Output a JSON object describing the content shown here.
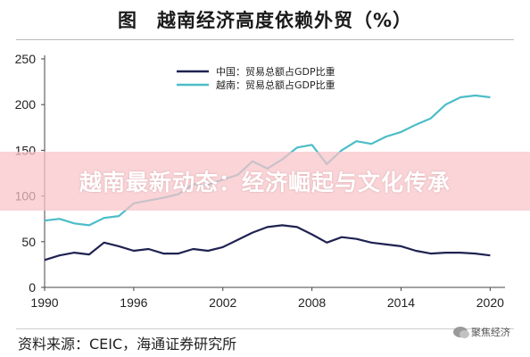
{
  "figure": {
    "label": "图",
    "title": "越南经济高度依赖外贸（%）"
  },
  "overlay": {
    "text": "越南最新动态：经济崛起与文化传承"
  },
  "source": {
    "text": "资料来源：CEIC，海通证券研究所"
  },
  "watermark": {
    "text": "聚焦经济",
    "icon": "wechat-icon"
  },
  "chart_data": {
    "type": "line",
    "title": "越南经济高度依赖外贸（%）",
    "xlim": [
      1990,
      2021
    ],
    "ylim": [
      0,
      250
    ],
    "x_ticks": [
      1990,
      1996,
      2002,
      2008,
      2014,
      2020
    ],
    "y_ticks": [
      0,
      50,
      100,
      150,
      200,
      250
    ],
    "legend_position": "top-center",
    "grid": false,
    "series": [
      {
        "name": "中国：贸易总额占GDP比重",
        "color": "#1f2250",
        "points": [
          [
            1990,
            30
          ],
          [
            1991,
            35
          ],
          [
            1992,
            38
          ],
          [
            1993,
            36
          ],
          [
            1994,
            49
          ],
          [
            1995,
            45
          ],
          [
            1996,
            40
          ],
          [
            1997,
            42
          ],
          [
            1998,
            37
          ],
          [
            1999,
            37
          ],
          [
            2000,
            42
          ],
          [
            2001,
            40
          ],
          [
            2002,
            44
          ],
          [
            2003,
            52
          ],
          [
            2004,
            60
          ],
          [
            2005,
            66
          ],
          [
            2006,
            68
          ],
          [
            2007,
            66
          ],
          [
            2008,
            58
          ],
          [
            2009,
            49
          ],
          [
            2010,
            55
          ],
          [
            2011,
            53
          ],
          [
            2012,
            49
          ],
          [
            2013,
            47
          ],
          [
            2014,
            45
          ],
          [
            2015,
            40
          ],
          [
            2016,
            37
          ],
          [
            2017,
            38
          ],
          [
            2018,
            38
          ],
          [
            2019,
            37
          ],
          [
            2020,
            35
          ]
        ]
      },
      {
        "name": "越南：贸易总额占GDP比重",
        "color": "#4bbdc8",
        "points": [
          [
            1990,
            73
          ],
          [
            1991,
            75
          ],
          [
            1992,
            70
          ],
          [
            1993,
            68
          ],
          [
            1994,
            76
          ],
          [
            1995,
            78
          ],
          [
            1996,
            92
          ],
          [
            1997,
            95
          ],
          [
            1998,
            98
          ],
          [
            1999,
            102
          ],
          [
            2000,
            113
          ],
          [
            2001,
            112
          ],
          [
            2002,
            118
          ],
          [
            2003,
            123
          ],
          [
            2004,
            138
          ],
          [
            2005,
            130
          ],
          [
            2006,
            140
          ],
          [
            2007,
            153
          ],
          [
            2008,
            156
          ],
          [
            2009,
            135
          ],
          [
            2010,
            150
          ],
          [
            2011,
            160
          ],
          [
            2012,
            157
          ],
          [
            2013,
            165
          ],
          [
            2014,
            170
          ],
          [
            2015,
            178
          ],
          [
            2016,
            185
          ],
          [
            2017,
            200
          ],
          [
            2018,
            208
          ],
          [
            2019,
            210
          ],
          [
            2020,
            208
          ]
        ]
      }
    ]
  }
}
